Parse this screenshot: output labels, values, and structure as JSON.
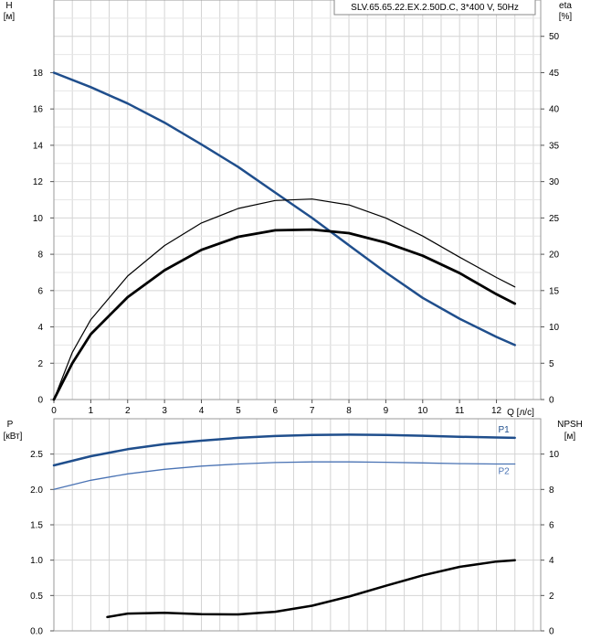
{
  "colors": {
    "blue": "#1f4e8c",
    "blue_light": "#4a73b4",
    "black": "#000000",
    "grid": "#d4d4d4"
  },
  "title_box": "SLV.65.65.22.EX.2.50D.C, 3*400 V, 50Hz",
  "chart_data": [
    {
      "type": "line",
      "xlabel": "Q [л/с]",
      "ylabel_left": [
        "H",
        "[м]"
      ],
      "ylabel_right": [
        "eta",
        "[%]"
      ],
      "xlim": [
        0,
        13.2
      ],
      "xticks": [
        0,
        1,
        2,
        3,
        4,
        5,
        6,
        7,
        8,
        9,
        10,
        11,
        12
      ],
      "ylim_left": [
        0,
        22
      ],
      "yticks_left": [
        0,
        2,
        4,
        6,
        8,
        10,
        12,
        14,
        16,
        18
      ],
      "ylim_right": [
        0,
        55
      ],
      "yticks_right": [
        0,
        5,
        10,
        15,
        20,
        25,
        30,
        35,
        40,
        45,
        50
      ],
      "grid": true,
      "series": [
        {
          "axis": "left",
          "color_key": "blue",
          "width": 2.5,
          "x": [
            0,
            1,
            2,
            3,
            4,
            5,
            6,
            7,
            8,
            9,
            10,
            11,
            12,
            12.5
          ],
          "y": [
            18.0,
            17.2,
            16.3,
            15.25,
            14.05,
            12.8,
            11.4,
            10.0,
            8.5,
            7.0,
            5.6,
            4.45,
            3.45,
            3.0
          ]
        },
        {
          "axis": "right",
          "color_key": "black",
          "width": 1.2,
          "x": [
            0,
            0.5,
            1,
            2,
            3,
            4,
            5,
            6,
            7,
            8,
            9,
            10,
            11,
            12,
            12.5
          ],
          "y": [
            0,
            6.5,
            11.0,
            17.0,
            21.2,
            24.3,
            26.3,
            27.4,
            27.6,
            26.8,
            25.0,
            22.5,
            19.6,
            16.8,
            15.5
          ]
        },
        {
          "axis": "right",
          "color_key": "black",
          "width": 2.8,
          "x": [
            0,
            0.5,
            1,
            2,
            3,
            4,
            5,
            6,
            7,
            8,
            9,
            10,
            11,
            12,
            12.5
          ],
          "y": [
            0,
            5.0,
            9.0,
            14.1,
            17.8,
            20.6,
            22.4,
            23.3,
            23.4,
            22.9,
            21.6,
            19.8,
            17.4,
            14.5,
            13.2
          ]
        }
      ]
    },
    {
      "type": "line",
      "ylabel_left": [
        "P",
        "[кВт]"
      ],
      "ylabel_right": [
        "NPSH",
        "[м]"
      ],
      "xlim": [
        0,
        13.2
      ],
      "ylim_left": [
        0,
        3.0
      ],
      "yticks_left": [
        0.0,
        0.5,
        1.0,
        1.5,
        2.0,
        2.5
      ],
      "ylim_right": [
        0,
        12
      ],
      "yticks_right": [
        0,
        2,
        4,
        6,
        8,
        10
      ],
      "grid": true,
      "series": [
        {
          "name": "P1",
          "axis": "left",
          "color_key": "blue",
          "width": 2.5,
          "x": [
            0,
            1,
            2,
            3,
            4,
            5,
            6,
            7,
            8,
            9,
            10,
            11,
            12,
            12.5
          ],
          "y": [
            2.34,
            2.47,
            2.57,
            2.64,
            2.69,
            2.73,
            2.755,
            2.77,
            2.775,
            2.77,
            2.76,
            2.745,
            2.735,
            2.73
          ]
        },
        {
          "name": "P2",
          "axis": "left",
          "color_key": "blue_light",
          "width": 1.3,
          "x": [
            0,
            1,
            2,
            3,
            4,
            5,
            6,
            7,
            8,
            9,
            10,
            11,
            12,
            12.5
          ],
          "y": [
            2.0,
            2.13,
            2.22,
            2.285,
            2.33,
            2.36,
            2.38,
            2.39,
            2.39,
            2.385,
            2.375,
            2.365,
            2.36,
            2.36
          ]
        },
        {
          "axis": "right",
          "color_key": "black",
          "width": 2.5,
          "x": [
            1.45,
            2,
            3,
            4,
            5,
            6,
            7,
            8,
            9,
            10,
            11,
            12,
            12.5
          ],
          "y": [
            0.78,
            0.98,
            1.02,
            0.94,
            0.93,
            1.08,
            1.42,
            1.94,
            2.55,
            3.14,
            3.62,
            3.92,
            4.0
          ]
        }
      ]
    }
  ]
}
